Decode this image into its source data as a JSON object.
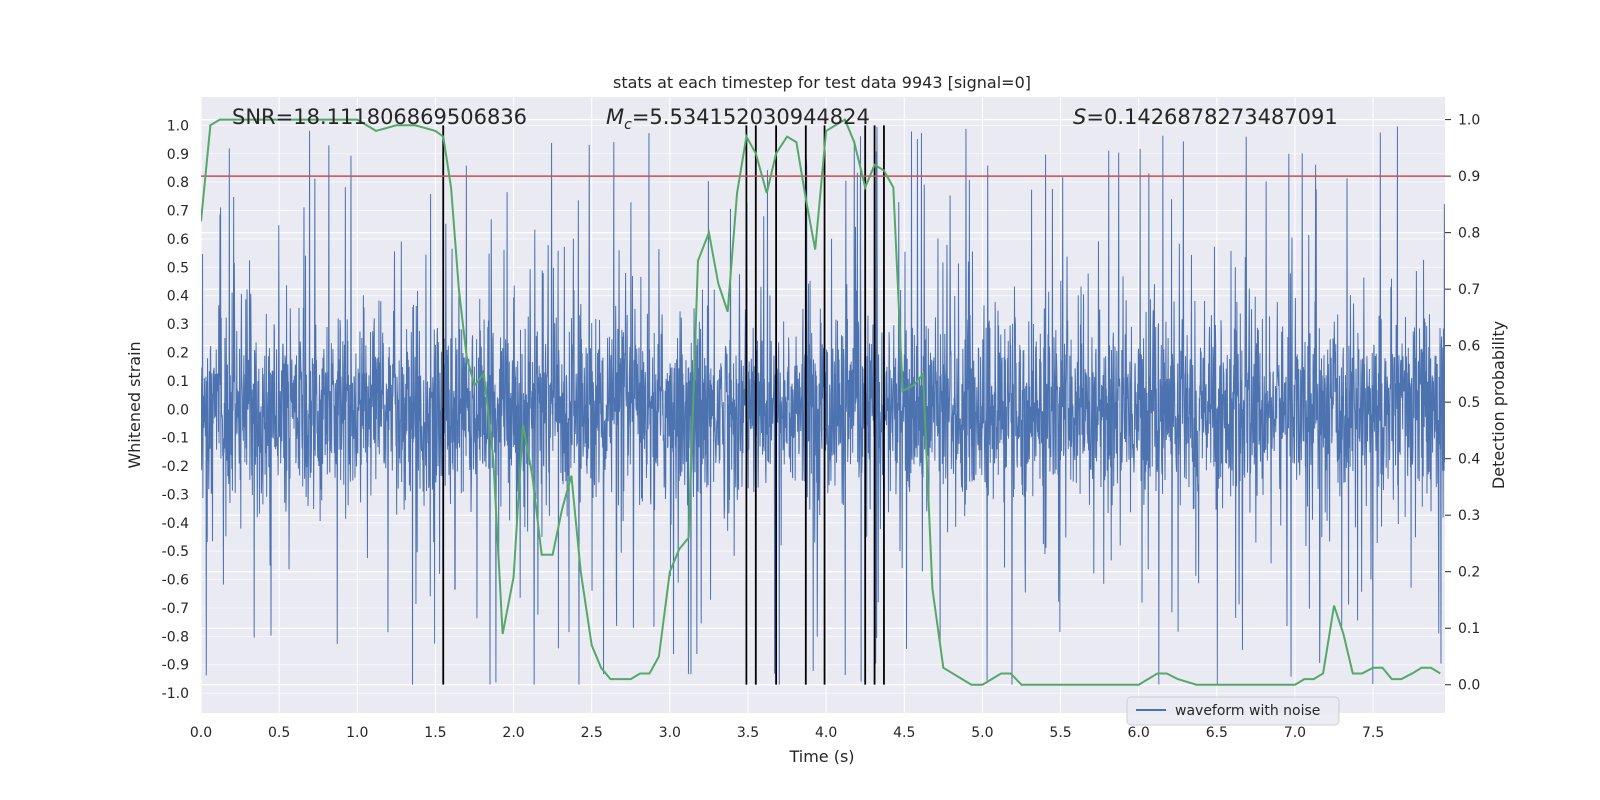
{
  "chart_data": {
    "type": "line",
    "title": "stats at each timestep for test data 9943 [signal=0]",
    "xlabel": "Time (s)",
    "ylabel_left": "Whitened strain",
    "ylabel_right": "Detection probability",
    "xlim": [
      0.0,
      7.96
    ],
    "ylim_left": [
      -1.07,
      1.1
    ],
    "ylim_right": [
      -0.05,
      1.04
    ],
    "x_ticks": [
      "0.0",
      "0.5",
      "1.0",
      "1.5",
      "2.0",
      "2.5",
      "3.0",
      "3.5",
      "4.0",
      "4.5",
      "5.0",
      "5.5",
      "6.0",
      "6.5",
      "7.0",
      "7.5"
    ],
    "y_ticks_left": [
      "-1.0",
      "-0.9",
      "-0.8",
      "-0.7",
      "-0.6",
      "-0.5",
      "-0.4",
      "-0.3",
      "-0.2",
      "-0.1",
      "0.0",
      "0.1",
      "0.2",
      "0.3",
      "0.4",
      "0.5",
      "0.6",
      "0.7",
      "0.8",
      "0.9",
      "1.0"
    ],
    "y_ticks_right": [
      "0.0",
      "0.1",
      "0.2",
      "0.3",
      "0.4",
      "0.5",
      "0.6",
      "0.7",
      "0.8",
      "0.9",
      "1.0"
    ],
    "annotations": {
      "snr": "SNR=18.111806869506836",
      "mc_symbol": "M",
      "mc_sub": "c",
      "mc_value": "=5.534152030944824",
      "s_symbol": "S",
      "s_value": "=0.1426878273487091"
    },
    "legend": {
      "waveform": "waveform with noise"
    },
    "threshold": 0.9,
    "event_lines_x": [
      1.55,
      3.49,
      3.55,
      3.68,
      3.87,
      3.99,
      4.25,
      4.31,
      4.37
    ],
    "event_lines_range": [
      -0.97,
      1.0
    ],
    "waveform": {
      "name": "waveform with noise",
      "color": "#4c72b0",
      "amplitude_typical": 0.4,
      "amplitude_max": 1.0
    },
    "detection_probability": {
      "name": "detection probability",
      "color": "#55a868",
      "x": [
        0.0,
        0.06,
        0.12,
        0.25,
        0.5,
        0.75,
        1.0,
        1.12,
        1.25,
        1.37,
        1.5,
        1.55,
        1.6,
        1.65,
        1.7,
        1.75,
        1.81,
        1.87,
        1.93,
        2.0,
        2.06,
        2.12,
        2.18,
        2.25,
        2.31,
        2.37,
        2.43,
        2.5,
        2.56,
        2.62,
        2.68,
        2.75,
        2.81,
        2.87,
        2.93,
        3.0,
        3.06,
        3.12,
        3.18,
        3.25,
        3.31,
        3.37,
        3.43,
        3.49,
        3.55,
        3.62,
        3.68,
        3.75,
        3.81,
        3.87,
        3.93,
        4.0,
        4.06,
        4.12,
        4.18,
        4.25,
        4.31,
        4.37,
        4.43,
        4.49,
        4.56,
        4.62,
        4.68,
        4.75,
        4.81,
        4.87,
        4.93,
        5.0,
        5.06,
        5.12,
        5.18,
        5.25,
        5.37,
        5.5,
        6.0,
        6.06,
        6.12,
        6.18,
        6.25,
        6.37,
        6.5,
        7.0,
        7.06,
        7.12,
        7.18,
        7.25,
        7.31,
        7.37,
        7.43,
        7.5,
        7.56,
        7.62,
        7.68,
        7.75,
        7.81,
        7.87,
        7.93
      ],
      "y": [
        0.82,
        0.99,
        1.0,
        1.0,
        1.0,
        1.0,
        1.0,
        0.98,
        0.99,
        0.99,
        0.98,
        0.97,
        0.88,
        0.7,
        0.58,
        0.53,
        0.55,
        0.4,
        0.09,
        0.19,
        0.46,
        0.37,
        0.23,
        0.23,
        0.31,
        0.37,
        0.2,
        0.07,
        0.03,
        0.01,
        0.01,
        0.01,
        0.02,
        0.02,
        0.05,
        0.2,
        0.24,
        0.26,
        0.75,
        0.8,
        0.71,
        0.66,
        0.87,
        0.97,
        0.94,
        0.87,
        0.94,
        0.97,
        0.96,
        0.86,
        0.77,
        0.98,
        0.99,
        1.0,
        0.96,
        0.88,
        0.92,
        0.91,
        0.88,
        0.52,
        0.53,
        0.55,
        0.17,
        0.03,
        0.02,
        0.01,
        0.0,
        0.0,
        0.01,
        0.02,
        0.02,
        0.0,
        0.0,
        0.0,
        0.0,
        0.01,
        0.02,
        0.02,
        0.01,
        0.0,
        0.0,
        0.0,
        0.01,
        0.01,
        0.02,
        0.14,
        0.09,
        0.02,
        0.02,
        0.03,
        0.03,
        0.01,
        0.01,
        0.02,
        0.03,
        0.03,
        0.02
      ]
    },
    "legend_position": "bottom-right",
    "grid": true
  }
}
